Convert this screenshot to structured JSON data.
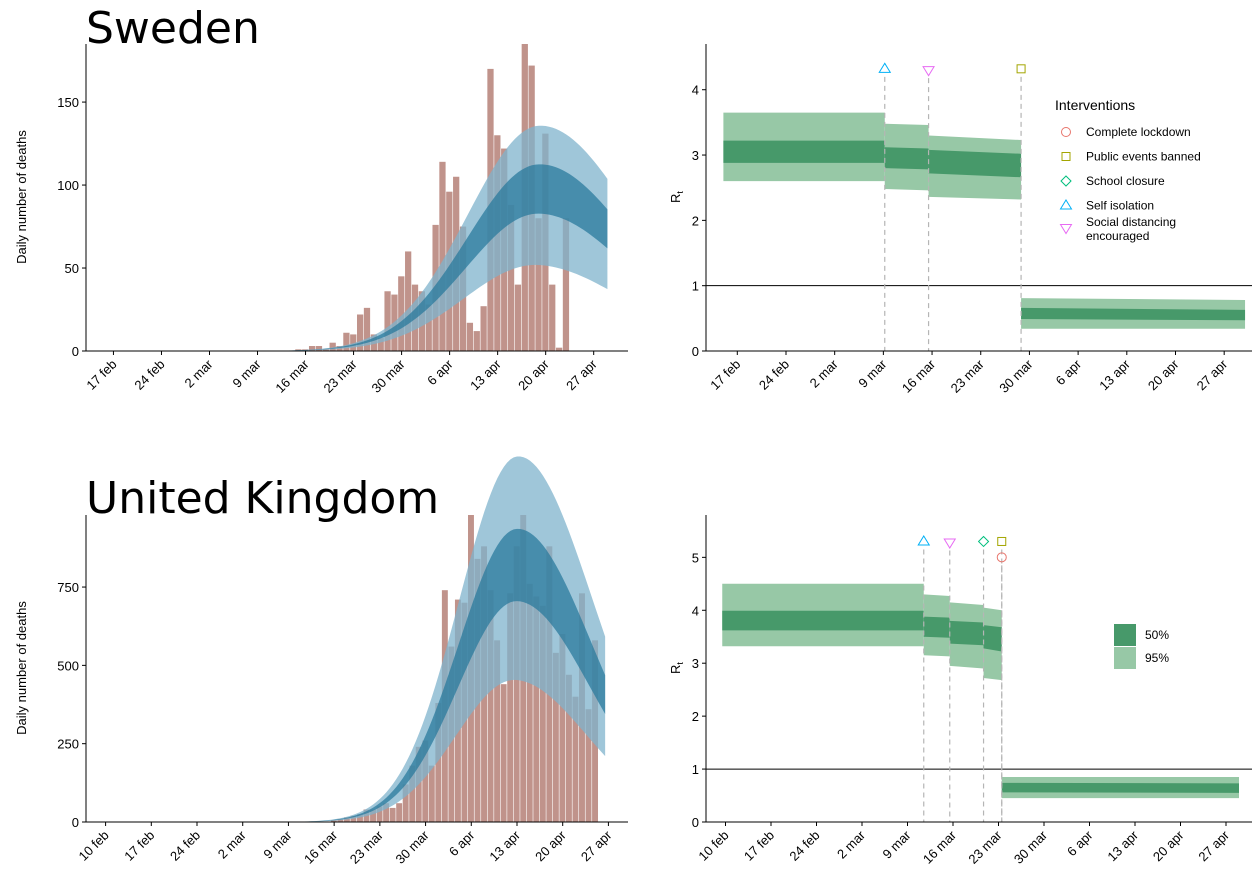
{
  "colors": {
    "bars": "#c0938b",
    "ci95": "#7fb3cc",
    "ci50": "#2a7a9c",
    "rt95": "#97c8a6",
    "rt50": "#47996a",
    "vline": "#b5b5b5",
    "lockdown": "#e8766d",
    "events": "#a3a500",
    "school": "#00bf7d",
    "self": "#00b0f6",
    "distancing": "#e76bf3"
  },
  "legend_interventions": {
    "title": "Interventions",
    "items": [
      {
        "label": "Complete lockdown",
        "shape": "circle",
        "color": "#e8766d"
      },
      {
        "label": "Public events banned",
        "shape": "square",
        "color": "#a3a500"
      },
      {
        "label": "School closure",
        "shape": "diamond",
        "color": "#00bf7d"
      },
      {
        "label": "Self isolation",
        "shape": "triangle-up",
        "color": "#00b0f6"
      },
      {
        "label": "Social distancing",
        "label2": "encouraged",
        "shape": "triangle-down",
        "color": "#e76bf3"
      }
    ]
  },
  "legend_ci": [
    {
      "label": "50%",
      "color": "#47996a"
    },
    {
      "label": "95%",
      "color": "#97c8a6"
    }
  ],
  "chart_data": [
    {
      "id": "sweden-deaths",
      "type": "bar",
      "title": "Sweden",
      "ylabel": "Daily number of deaths",
      "xlabel": "",
      "x_start": "2020-02-13",
      "ylim": [
        0,
        185
      ],
      "yticks": [
        0,
        50,
        100,
        150
      ],
      "xticks": [
        "17 feb",
        "24 feb",
        "2 mar",
        "9 mar",
        "16 mar",
        "23 mar",
        "30 mar",
        "6 apr",
        "13 apr",
        "20 apr",
        "27 apr"
      ],
      "xtick_days": [
        4,
        11,
        18,
        25,
        32,
        39,
        46,
        53,
        60,
        67,
        74
      ],
      "bars": {
        "start_day": 31,
        "values": [
          1,
          1,
          3,
          3,
          1,
          5,
          3,
          11,
          10,
          22,
          26,
          10,
          8,
          36,
          34,
          45,
          60,
          40,
          36,
          28,
          76,
          114,
          96,
          105,
          75,
          17,
          12,
          27,
          170,
          130,
          122,
          88,
          40,
          185,
          172,
          80,
          131,
          40,
          2,
          80
        ]
      },
      "model": {
        "start_day": 18,
        "end_day": 76,
        "peak_day": 66,
        "peak_median": 97,
        "sigma": 10.5,
        "right_decay": 2000,
        "band50": [
          0.12,
          0.11
        ],
        "band95": [
          0.3,
          0.35
        ]
      }
    },
    {
      "id": "sweden-rt",
      "type": "area",
      "ylabel": "R_t",
      "x_start": "2020-02-13",
      "ylim": [
        0,
        4.7
      ],
      "yticks": [
        0,
        1,
        2,
        3,
        4
      ],
      "xticks": [
        "17 feb",
        "24 feb",
        "2 mar",
        "9 mar",
        "16 mar",
        "23 mar",
        "30 mar",
        "6 apr",
        "13 apr",
        "20 apr",
        "27 apr"
      ],
      "xtick_days": [
        4,
        11,
        18,
        25,
        32,
        39,
        46,
        53,
        60,
        67,
        74
      ],
      "xlim_days": [
        -0.5,
        78
      ],
      "reference_line": 1,
      "segments": [
        {
          "from": 2,
          "to": 25.2,
          "median": [
            3.05,
            3.05
          ],
          "ci50": [
            [
              2.88,
              3.22
            ],
            [
              2.88,
              3.22
            ]
          ],
          "ci95": [
            [
              2.6,
              3.65
            ],
            [
              2.6,
              3.65
            ]
          ]
        },
        {
          "from": 25.2,
          "to": 31.5,
          "median": [
            2.96,
            2.94
          ],
          "ci50": [
            [
              2.8,
              3.12
            ],
            [
              2.78,
              3.1
            ]
          ],
          "ci95": [
            [
              2.48,
              3.48
            ],
            [
              2.46,
              3.46
            ]
          ]
        },
        {
          "from": 31.5,
          "to": 44.8,
          "median": [
            2.9,
            2.85
          ],
          "ci50": [
            [
              2.72,
              3.08
            ],
            [
              2.66,
              3.02
            ]
          ],
          "ci95": [
            [
              2.36,
              3.3
            ],
            [
              2.32,
              3.23
            ]
          ]
        },
        {
          "from": 44.8,
          "to": 77,
          "median": [
            0.57,
            0.55
          ],
          "ci50": [
            [
              0.49,
              0.66
            ],
            [
              0.47,
              0.63
            ]
          ],
          "ci95": [
            [
              0.34,
              0.81
            ],
            [
              0.34,
              0.78
            ]
          ]
        }
      ],
      "interventions": [
        {
          "day": 25.2,
          "type": "self",
          "y": 4.32
        },
        {
          "day": 31.5,
          "type": "distancing",
          "y": 4.3
        },
        {
          "day": 44.8,
          "type": "events",
          "y": 4.32
        }
      ]
    },
    {
      "id": "uk-deaths",
      "type": "bar",
      "title": "United Kingdom",
      "ylabel": "Daily number of deaths",
      "xlabel": "",
      "x_start": "2020-02-07",
      "ylim": [
        0,
        980
      ],
      "yticks": [
        0,
        250,
        500,
        750
      ],
      "xticks": [
        "10 feb",
        "17 feb",
        "24 feb",
        "2 mar",
        "9 mar",
        "16 mar",
        "23 mar",
        "30 mar",
        "6 apr",
        "13 apr",
        "20 apr",
        "27 apr"
      ],
      "xtick_days": [
        3,
        10,
        17,
        24,
        31,
        38,
        45,
        52,
        59,
        66,
        73,
        80
      ],
      "bars": {
        "start_day": 38,
        "values": [
          5,
          10,
          15,
          20,
          25,
          40,
          40,
          50,
          60,
          45,
          60,
          120,
          180,
          240,
          260,
          180,
          380,
          740,
          560,
          710,
          700,
          980,
          840,
          880,
          740,
          580,
          440,
          730,
          880,
          980,
          760,
          720,
          690,
          880,
          540,
          600,
          470,
          400,
          730,
          360,
          580
        ]
      },
      "model": {
        "start_day": 28,
        "end_day": 79.5,
        "peak_day": 66,
        "peak_median": 810,
        "sigma": 9,
        "right_decay": 2000,
        "band50": [
          0.12,
          0.1
        ],
        "band95": [
          0.34,
          0.34
        ]
      }
    },
    {
      "id": "uk-rt",
      "type": "area",
      "ylabel": "R_t",
      "x_start": "2020-02-07",
      "ylim": [
        0,
        5.8
      ],
      "yticks": [
        0,
        1,
        2,
        3,
        4,
        5
      ],
      "xticks": [
        "10 feb",
        "17 feb",
        "24 feb",
        "2 mar",
        "9 mar",
        "16 mar",
        "23 mar",
        "30 mar",
        "6 apr",
        "13 apr",
        "20 apr",
        "27 apr"
      ],
      "xtick_days": [
        3,
        10,
        17,
        24,
        31,
        38,
        45,
        52,
        59,
        66,
        73,
        80
      ],
      "xlim_days": [
        0,
        84
      ],
      "reference_line": 1,
      "segments": [
        {
          "from": 2.5,
          "to": 33.5,
          "median": [
            3.8,
            3.8
          ],
          "ci50": [
            [
              3.62,
              3.99
            ],
            [
              3.62,
              3.99
            ]
          ],
          "ci95": [
            [
              3.32,
              4.5
            ],
            [
              3.32,
              4.5
            ]
          ]
        },
        {
          "from": 33.5,
          "to": 37.5,
          "median": [
            3.7,
            3.68
          ],
          "ci50": [
            [
              3.5,
              3.88
            ],
            [
              3.48,
              3.86
            ]
          ],
          "ci95": [
            [
              3.15,
              4.3
            ],
            [
              3.13,
              4.27
            ]
          ]
        },
        {
          "from": 37.5,
          "to": 42.7,
          "median": [
            3.6,
            3.57
          ],
          "ci50": [
            [
              3.37,
              3.8
            ],
            [
              3.34,
              3.77
            ]
          ],
          "ci95": [
            [
              2.95,
              4.15
            ],
            [
              2.9,
              4.1
            ]
          ]
        },
        {
          "from": 42.7,
          "to": 45.5,
          "median": [
            3.5,
            3.45
          ],
          "ci50": [
            [
              3.28,
              3.72
            ],
            [
              3.22,
              3.68
            ]
          ],
          "ci95": [
            [
              2.72,
              4.05
            ],
            [
              2.68,
              4.0
            ]
          ]
        },
        {
          "from": 45.5,
          "to": 82,
          "median": [
            0.65,
            0.64
          ],
          "ci50": [
            [
              0.56,
              0.74
            ],
            [
              0.55,
              0.73
            ]
          ],
          "ci95": [
            [
              0.45,
              0.85
            ],
            [
              0.45,
              0.85
            ]
          ]
        }
      ],
      "interventions": [
        {
          "day": 33.5,
          "type": "self",
          "y": 5.3
        },
        {
          "day": 37.5,
          "type": "distancing",
          "y": 5.28
        },
        {
          "day": 42.7,
          "type": "school",
          "y": 5.3
        },
        {
          "day": 45.5,
          "type": "events",
          "y": 5.3
        },
        {
          "day": 45.5,
          "type": "lockdown",
          "y": 5.0
        }
      ]
    }
  ]
}
